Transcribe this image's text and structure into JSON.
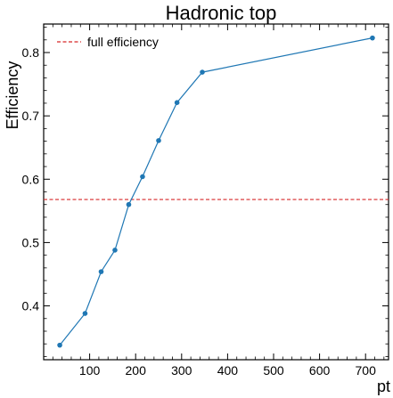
{
  "chart_data": {
    "type": "line",
    "title": "Hadronic top",
    "xlabel": "pt",
    "ylabel": "Efficiency",
    "xlim": [
      0,
      750
    ],
    "ylim": [
      0.315,
      0.845
    ],
    "xticks": [
      100,
      200,
      300,
      400,
      500,
      600,
      700
    ],
    "yticks": [
      0.4,
      0.5,
      0.6,
      0.7,
      0.8
    ],
    "grid": false,
    "legend_position": "top-left",
    "series": [
      {
        "values_x": [
          35,
          90,
          125,
          155,
          185,
          215,
          250,
          290,
          345,
          715
        ],
        "values_y": [
          0.338,
          0.388,
          0.454,
          0.488,
          0.56,
          0.604,
          0.661,
          0.721,
          0.769,
          0.823
        ],
        "color": "#1f77b4",
        "marker": "circle"
      }
    ],
    "reference_lines": [
      {
        "name": "full efficiency",
        "y": 0.568,
        "color": "#d62728",
        "style": "dashed"
      }
    ]
  }
}
